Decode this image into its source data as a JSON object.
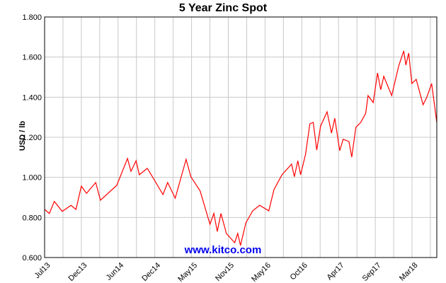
{
  "chart_data": {
    "type": "line",
    "title": "5 Year Zinc Spot",
    "xlabel": "",
    "ylabel": "USD / lb",
    "xlim": [
      "2013-07-01",
      "2018-07-01"
    ],
    "ylim": [
      0.6,
      1.8
    ],
    "yticks": [
      "0.600",
      "0.800",
      "1.000",
      "1.200",
      "1.400",
      "1.600",
      "1.800"
    ],
    "xtick_labels": [
      "Jul13",
      "Dec13",
      "Jun14",
      "Dec14",
      "May15",
      "Nov15",
      "May16",
      "Oct16",
      "Apr17",
      "Sep17",
      "Mar18"
    ],
    "grid": true,
    "line_color": "#ff0000",
    "watermark": "www.kitco.com",
    "watermark_color": "#0000ee",
    "series": [
      {
        "x": [
          "2013-07-01",
          "2013-07-23",
          "2013-08-15",
          "2013-09-21",
          "2013-11-01",
          "2013-11-24",
          "2013-12-19",
          "2014-01-12",
          "2014-02-24",
          "2014-03-18",
          "2014-06-02",
          "2014-07-22",
          "2014-08-07",
          "2014-08-31",
          "2014-09-15",
          "2014-10-22",
          "2014-11-15",
          "2015-01-03",
          "2015-01-25",
          "2015-03-01",
          "2015-04-21",
          "2015-05-13",
          "2015-06-25",
          "2015-08-10",
          "2015-08-28",
          "2015-09-13",
          "2015-09-30",
          "2015-10-19",
          "2015-10-25",
          "2015-12-03",
          "2015-12-17",
          "2015-12-30",
          "2016-01-24",
          "2016-02-25",
          "2016-03-28",
          "2016-05-10",
          "2016-06-03",
          "2016-07-10",
          "2016-08-24",
          "2016-09-06",
          "2016-09-22",
          "2016-10-05",
          "2016-10-28",
          "2016-11-17",
          "2016-12-03",
          "2016-12-19",
          "2017-01-06",
          "2017-02-05",
          "2017-02-26",
          "2017-03-13",
          "2017-04-05",
          "2017-04-21",
          "2017-05-18",
          "2017-05-31",
          "2017-06-19",
          "2017-07-12",
          "2017-08-04",
          "2017-08-15",
          "2017-09-08",
          "2017-09-28",
          "2017-10-13",
          "2017-10-27",
          "2017-12-03",
          "2018-01-05",
          "2018-01-28",
          "2018-02-07",
          "2018-02-20",
          "2018-03-07",
          "2018-03-27",
          "2018-04-28",
          "2018-05-15",
          "2018-06-07",
          "2018-07-01"
        ],
        "y": [
          0.84,
          0.82,
          0.88,
          0.83,
          0.86,
          0.84,
          0.956,
          0.92,
          0.974,
          0.886,
          0.96,
          1.094,
          1.03,
          1.083,
          1.013,
          1.045,
          1.003,
          0.914,
          0.974,
          0.896,
          1.09,
          1.003,
          0.932,
          0.766,
          0.82,
          0.73,
          0.82,
          0.745,
          0.72,
          0.674,
          0.72,
          0.66,
          0.773,
          0.833,
          0.861,
          0.833,
          0.939,
          1.013,
          1.066,
          1.003,
          1.083,
          1.013,
          1.115,
          1.267,
          1.274,
          1.136,
          1.256,
          1.327,
          1.221,
          1.295,
          1.133,
          1.19,
          1.179,
          1.101,
          1.249,
          1.274,
          1.32,
          1.408,
          1.373,
          1.521,
          1.437,
          1.504,
          1.408,
          1.557,
          1.631,
          1.56,
          1.62,
          1.468,
          1.489,
          1.362,
          1.398,
          1.468,
          1.274
        ]
      }
    ]
  }
}
